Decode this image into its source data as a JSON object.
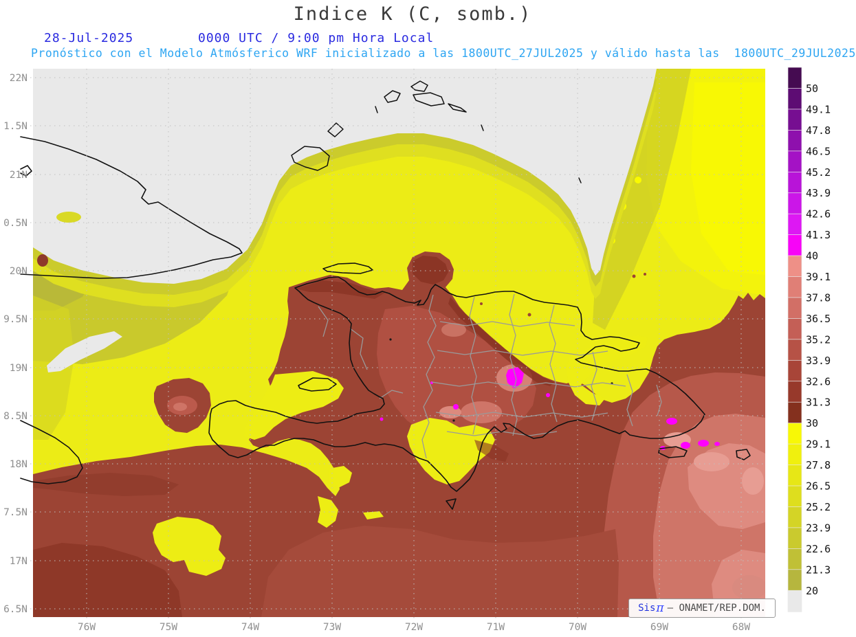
{
  "header": {
    "title": "Indice K (C, somb.)",
    "date": "28-Jul-2025",
    "local_time": "0000 UTC / 9:00 pm Hora Local",
    "forecast": "Pronóstico con el Modelo Atmósferico WRF inicializado a las 1800UTC_27JUL2025 y válido hasta las  1800UTC_29JUL2025"
  },
  "axes": {
    "lat_labels": [
      "22N",
      "1.5N",
      "21N",
      "0.5N",
      "20N",
      "9.5N",
      "19N",
      "8.5N",
      "18N",
      "7.5N",
      "17N",
      "6.5N"
    ],
    "lon_labels": [
      "76W",
      "75W",
      "74W",
      "73W",
      "72W",
      "71W",
      "70W",
      "69W",
      "68W"
    ]
  },
  "colorbar": {
    "tick_labels": [
      "50",
      "49.1",
      "47.8",
      "46.5",
      "45.2",
      "43.9",
      "42.6",
      "41.3",
      "40",
      "39.1",
      "37.8",
      "36.5",
      "35.2",
      "33.9",
      "32.6",
      "31.3",
      "30",
      "29.1",
      "27.8",
      "26.5",
      "25.2",
      "23.9",
      "22.6",
      "21.3",
      "20"
    ],
    "segment_colors": [
      "#450b51",
      "#5d0c73",
      "#760e91",
      "#8e10ad",
      "#a412c5",
      "#b814d8",
      "#cb16e8",
      "#dd18f3",
      "#f704f7",
      "#ee9087",
      "#e07f76",
      "#d26f66",
      "#c45f56",
      "#b65246",
      "#a84538",
      "#97392b",
      "#84301e",
      "#f8f806",
      "#f0f00e",
      "#e7e716",
      "#dede1e",
      "#d4d426",
      "#caca2e",
      "#c0c036",
      "#b6b63e",
      "#e9e9e9"
    ]
  },
  "watermark": {
    "brand": "Sis",
    "pi": "π",
    "separator": "–",
    "org": "ONAMET/REP.DOM."
  },
  "palette": {
    "no_data_gray": "#e9e9e9",
    "yellow_base": "#ecec16",
    "olive_yellow": "#c9c92c",
    "brick_red": "#9c4434",
    "dark_brick": "#84301e",
    "salmon": "#b6584a",
    "pink": "#cf7568",
    "pale_pink": "#e79d93",
    "magenta": "#ff00ff",
    "coastline_black": "#111111",
    "province_gray": "#9a9a9a",
    "grid_gray": "#c0c0c0",
    "title_text": "#3a3a3a",
    "date_blue": "#2a2ae0",
    "forecast_cyan": "#2da5f2",
    "axis_text": "#8f8f8f"
  }
}
